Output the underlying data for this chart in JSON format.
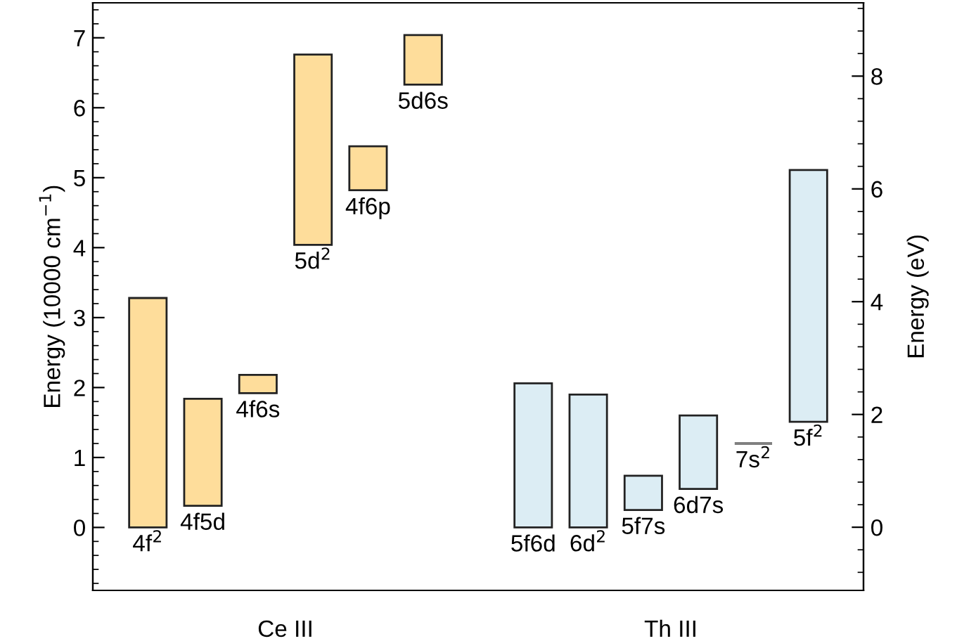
{
  "chart_data": {
    "type": "bar",
    "categories": [
      "4f$^{2}$",
      "4f5d",
      "4f6s",
      "5d$^{2}$",
      "4f6p",
      "5d6s",
      null,
      "5f6d",
      "6d$^{2}$",
      "5f7s",
      "6d7s",
      "7s$^{2}$",
      "5f$^{2}$"
    ],
    "base": [
      0,
      0.31,
      1.92,
      4.04,
      4.82,
      6.33,
      null,
      0,
      0,
      0.25,
      0.55,
      1.2,
      1.51
    ],
    "values": [
      3.28,
      1.53,
      0.26,
      2.72,
      0.63,
      0.71,
      null,
      2.06,
      1.9,
      0.49,
      1.05,
      0,
      3.6
    ],
    "colors": [
      "#fedd9b",
      "#fedd9b",
      "#fedd9b",
      "#fedd9b",
      "#fedd9b",
      "#fedd9b",
      null,
      "#dcedf4",
      "#dcedf4",
      "#dcedf4",
      "#dcedf4",
      "#808080",
      "#dcedf4"
    ],
    "ylabel": "Energy (10000 cm$^{−1}$)",
    "y2label": "Energy (eV)",
    "annotations": [
      "Ce III",
      "Th III"
    ],
    "ylim": [
      -0.9,
      7.5
    ],
    "yticks": [
      {
        "value": -0.8,
        "label": null
      },
      {
        "value": -0.6,
        "label": null
      },
      {
        "value": -0.4,
        "label": null
      },
      {
        "value": -0.2,
        "label": null
      },
      0,
      1,
      2,
      3,
      4,
      5,
      6,
      7,
      {
        "value": 0.2,
        "label": null
      },
      {
        "value": 0.4,
        "label": null
      },
      {
        "value": 0.6,
        "label": null
      },
      {
        "value": 0.8,
        "label": null
      },
      {
        "value": 1.2,
        "label": null
      },
      {
        "value": 1.4,
        "label": null
      },
      {
        "value": 1.6,
        "label": null
      },
      {
        "value": 1.8,
        "label": null
      },
      {
        "value": 2.2,
        "label": null
      },
      {
        "value": 2.4,
        "label": null
      },
      {
        "value": 2.6,
        "label": null
      },
      {
        "value": 2.8,
        "label": null
      },
      {
        "value": 3.2,
        "label": null
      },
      {
        "value": 3.4,
        "label": null
      },
      {
        "value": 3.6,
        "label": null
      },
      {
        "value": 3.8,
        "label": null
      },
      {
        "value": 4.2,
        "label": null
      },
      {
        "value": 4.4,
        "label": null
      },
      {
        "value": 4.6,
        "label": null
      },
      {
        "value": 4.8,
        "label": null
      },
      {
        "value": 5.2,
        "label": null
      },
      {
        "value": 5.4,
        "label": null
      },
      {
        "value": 5.6,
        "label": null
      },
      {
        "value": 5.8,
        "label": null
      },
      {
        "value": 6.2,
        "label": null
      },
      {
        "value": 6.4,
        "label": null
      },
      {
        "value": 6.6,
        "label": null
      },
      {
        "value": 6.8,
        "label": null
      },
      {
        "value": 7.2,
        "label": null
      },
      {
        "value": 7.4,
        "label": null
      }
    ],
    "y2lim": [
      -1.12,
      9.3
    ],
    "y2ticks": [
      {
        "value": -0.8,
        "label": null
      },
      {
        "value": -0.4,
        "label": null
      },
      0,
      2,
      4,
      6,
      8,
      {
        "value": 0.4,
        "label": null
      },
      {
        "value": 0.8,
        "label": null
      },
      {
        "value": 1.2,
        "label": null
      },
      {
        "value": 1.6,
        "label": null
      },
      {
        "value": 2.4,
        "label": null
      },
      {
        "value": 2.8,
        "label": null
      },
      {
        "value": 3.2,
        "label": null
      },
      {
        "value": 3.6,
        "label": null
      },
      {
        "value": 4.4,
        "label": null
      },
      {
        "value": 4.8,
        "label": null
      },
      {
        "value": 5.2,
        "label": null
      },
      {
        "value": 5.6,
        "label": null
      },
      {
        "value": 6.4,
        "label": null
      },
      {
        "value": 6.8,
        "label": null
      },
      {
        "value": 7.2,
        "label": null
      },
      {
        "value": 7.6,
        "label": null
      },
      {
        "value": 8.4,
        "label": null
      },
      {
        "value": 8.8,
        "label": null
      },
      {
        "value": 9.2,
        "label": null
      }
    ],
    "grid": false,
    "legend": false
  }
}
